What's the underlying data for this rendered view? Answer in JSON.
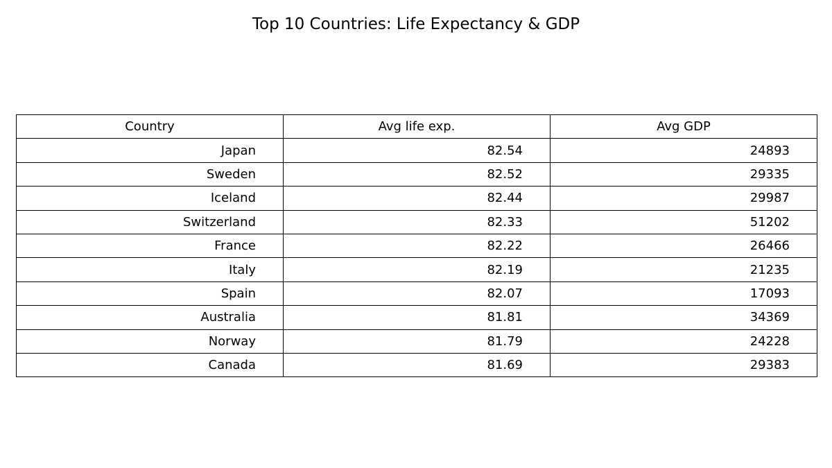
{
  "chart_data": {
    "type": "table",
    "title": "Top 10 Countries: Life Expectancy & GDP",
    "columns": [
      "Country",
      "Avg life exp.",
      "Avg GDP"
    ],
    "rows": [
      [
        "Japan",
        "82.54",
        "24893"
      ],
      [
        "Sweden",
        "82.52",
        "29335"
      ],
      [
        "Iceland",
        "82.44",
        "29987"
      ],
      [
        "Switzerland",
        "82.33",
        "51202"
      ],
      [
        "France",
        "82.22",
        "26466"
      ],
      [
        "Italy",
        "82.19",
        "21235"
      ],
      [
        "Spain",
        "82.07",
        "17093"
      ],
      [
        "Australia",
        "81.81",
        "34369"
      ],
      [
        "Norway",
        "81.79",
        "24228"
      ],
      [
        "Canada",
        "81.69",
        "29383"
      ]
    ]
  }
}
